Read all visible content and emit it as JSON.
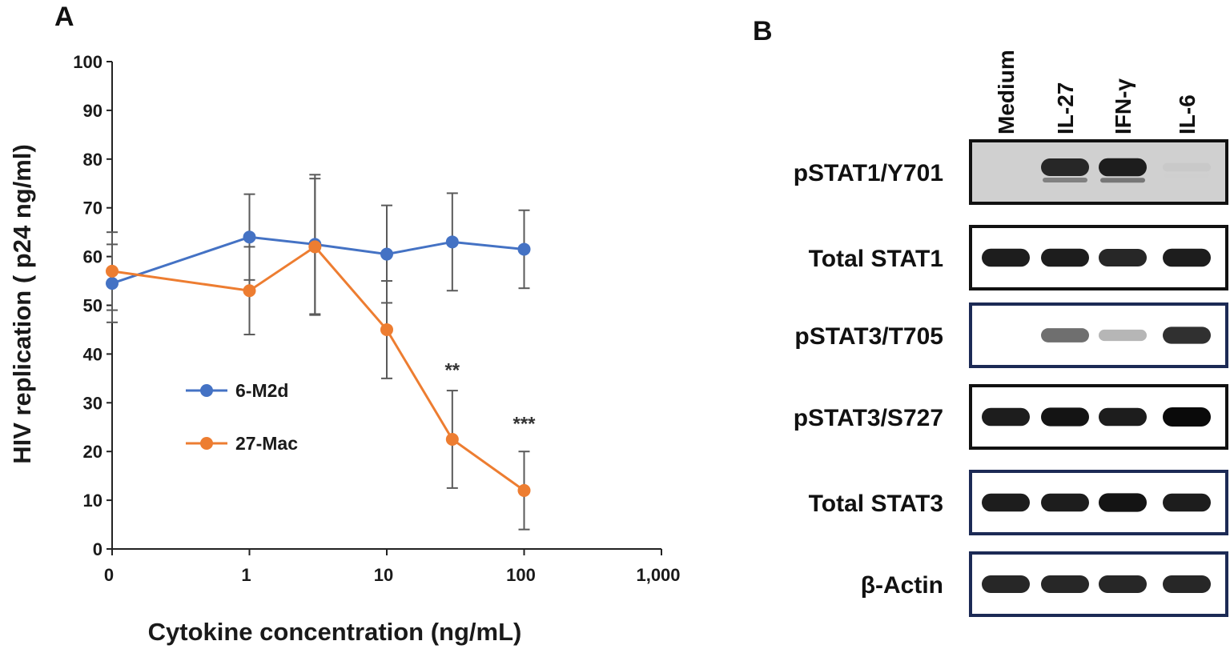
{
  "panels": {
    "a_letter": "A",
    "b_letter": "B"
  },
  "chart_data": {
    "type": "line",
    "title": "",
    "xlabel": "Cytokine concentration (ng/mL)",
    "ylabel": "HIV replication ( p24 ng/ml)",
    "x_scale": "log10",
    "x_ticks": [
      0,
      1,
      10,
      100,
      1000
    ],
    "x_tick_labels": [
      "0",
      "1",
      "10",
      "100",
      "1,000"
    ],
    "ylim": [
      0,
      100
    ],
    "y_ticks": [
      0,
      10,
      20,
      30,
      40,
      50,
      60,
      70,
      80,
      90,
      100
    ],
    "x": [
      0,
      1,
      3,
      10,
      30,
      100
    ],
    "series": [
      {
        "name": "6-M2d",
        "color": "#4472C4",
        "values": [
          54.5,
          64,
          62.5,
          60.5,
          63,
          61.5
        ],
        "error": [
          8,
          8.8,
          14.3,
          10,
          10,
          8
        ]
      },
      {
        "name": "27-Mac",
        "color": "#ED7D31",
        "values": [
          57,
          53,
          62,
          45,
          22.5,
          12
        ],
        "error": [
          8,
          9,
          14,
          10,
          10,
          8
        ]
      }
    ],
    "legend_position": "center-left",
    "annotations": [
      {
        "text": "**",
        "x": 30,
        "y": 37
      },
      {
        "text": "***",
        "x": 100,
        "y": 26
      }
    ]
  },
  "blot": {
    "lanes": [
      "Medium",
      "IL-27",
      "IFN-γ",
      "IL-6"
    ],
    "rows": [
      {
        "label": "pSTAT1/Y701",
        "bands": [
          0,
          0.85,
          0.9,
          0.05
        ]
      },
      {
        "label": "Total STAT1",
        "bands": [
          0.9,
          0.9,
          0.85,
          0.9
        ]
      },
      {
        "label": "pSTAT3/T705",
        "bands": [
          0,
          0.55,
          0.3,
          0.8
        ]
      },
      {
        "label": "pSTAT3/S727",
        "bands": [
          0.9,
          0.95,
          0.9,
          1.0
        ]
      },
      {
        "label": "Total STAT3",
        "bands": [
          0.9,
          0.9,
          0.95,
          0.9
        ]
      },
      {
        "label": "β-Actin",
        "bands": [
          0.85,
          0.85,
          0.85,
          0.85
        ]
      }
    ]
  }
}
